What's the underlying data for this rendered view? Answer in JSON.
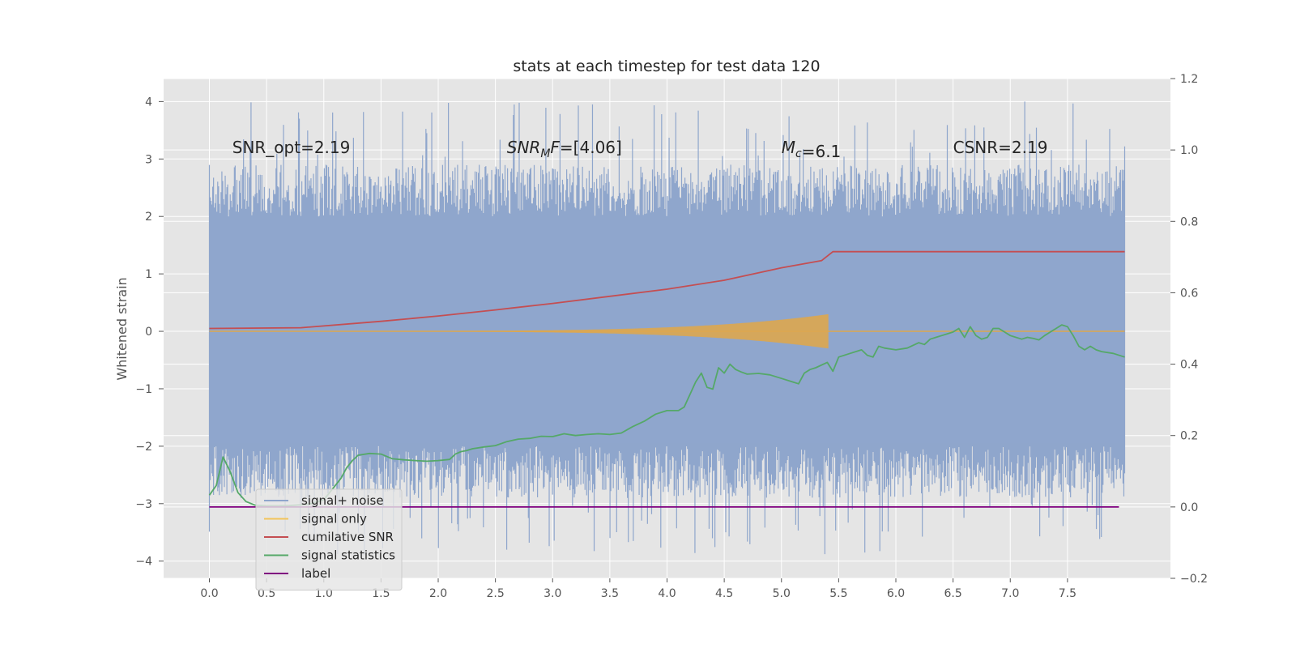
{
  "chart_data": {
    "type": "line",
    "title": "stats at each timestep for test data 120",
    "xlabel": "",
    "ylabel": "Whitened strain",
    "xlim": [
      -0.4,
      8.4
    ],
    "ylim": [
      -4.3,
      4.4
    ],
    "y2lim": [
      -0.2,
      1.2
    ],
    "grid": true,
    "x_ticks": [
      0.0,
      0.5,
      1.0,
      1.5,
      2.0,
      2.5,
      3.0,
      3.5,
      4.0,
      4.5,
      5.0,
      5.5,
      6.0,
      6.5,
      7.0,
      7.5
    ],
    "x_tick_labels": [
      "0.0",
      "0.5",
      "1.0",
      "1.5",
      "2.0",
      "2.5",
      "3.0",
      "3.5",
      "4.0",
      "4.5",
      "5.0",
      "5.5",
      "6.0",
      "6.5",
      "7.0",
      "7.5"
    ],
    "y_ticks": [
      -4,
      -3,
      -2,
      -1,
      0,
      1,
      2,
      3,
      4
    ],
    "y_tick_labels": [
      "−4",
      "−3",
      "−2",
      "−1",
      "0",
      "1",
      "2",
      "3",
      "4"
    ],
    "y2_ticks": [
      -0.2,
      0.0,
      0.2,
      0.4,
      0.6,
      0.8,
      1.0,
      1.2
    ],
    "y2_tick_labels": [
      "−0.2",
      "0.0",
      "0.2",
      "0.4",
      "0.6",
      "0.8",
      "1.0",
      "1.2"
    ],
    "annotations": [
      {
        "text": "SNR_opt=2.19",
        "x": 0.2,
        "y": 3.2
      },
      {
        "text": "SNR_MF=[4.06]",
        "x": 2.6,
        "y": 3.2
      },
      {
        "text": "M_c=6.1",
        "x": 5.0,
        "y": 3.2
      },
      {
        "text": "CSNR=2.19",
        "x": 6.5,
        "y": 3.2
      }
    ],
    "legend": {
      "position": "lower-left",
      "entries": [
        {
          "label": "signal+ noise",
          "color": "#8fa6cc"
        },
        {
          "label": "signal only",
          "color": "#f2c45a"
        },
        {
          "label": "cumilative SNR",
          "color": "#c44e52"
        },
        {
          "label": "signal statistics",
          "color": "#55a868"
        },
        {
          "label": "label",
          "color": "#800080"
        }
      ]
    },
    "series": [
      {
        "name": "signal+ noise",
        "axis": "left",
        "style": "noise-band",
        "color": "#8fa6cc",
        "x_range": [
          0.0,
          8.0
        ],
        "envelope": [
          -2.0,
          2.0
        ],
        "extreme_range": [
          -3.9,
          4.0
        ]
      },
      {
        "name": "signal only",
        "axis": "left",
        "style": "chirp",
        "color": "#dda74f",
        "x_range": [
          0.0,
          8.0
        ],
        "merger_time": 5.43,
        "peak_amplitude": 0.3
      },
      {
        "name": "cumilative SNR",
        "axis": "right",
        "color": "#c44e52",
        "x": [
          0.0,
          0.8,
          1.5,
          2.0,
          2.5,
          3.0,
          3.5,
          4.0,
          4.5,
          5.0,
          5.35,
          5.45,
          8.0
        ],
        "values": [
          0.5,
          0.502,
          0.52,
          0.535,
          0.552,
          0.57,
          0.59,
          0.61,
          0.635,
          0.67,
          0.69,
          0.715,
          0.715
        ]
      },
      {
        "name": "signal statistics",
        "axis": "right",
        "color": "#55a868",
        "x": [
          0.0,
          0.06,
          0.12,
          0.18,
          0.25,
          0.32,
          0.4,
          0.5,
          0.6,
          0.7,
          0.8,
          0.9,
          1.0,
          1.1,
          1.15,
          1.2,
          1.25,
          1.3,
          1.4,
          1.5,
          1.6,
          1.7,
          1.8,
          1.9,
          2.0,
          2.1,
          2.15,
          2.2,
          2.25,
          2.3,
          2.4,
          2.5,
          2.6,
          2.7,
          2.8,
          2.9,
          3.0,
          3.1,
          3.2,
          3.3,
          3.4,
          3.5,
          3.6,
          3.7,
          3.8,
          3.9,
          4.0,
          4.1,
          4.15,
          4.2,
          4.25,
          4.3,
          4.35,
          4.4,
          4.45,
          4.5,
          4.55,
          4.6,
          4.65,
          4.7,
          4.8,
          4.9,
          5.0,
          5.1,
          5.15,
          5.2,
          5.25,
          5.3,
          5.4,
          5.45,
          5.5,
          5.6,
          5.7,
          5.75,
          5.8,
          5.85,
          5.9,
          6.0,
          6.1,
          6.2,
          6.25,
          6.3,
          6.35,
          6.4,
          6.45,
          6.5,
          6.55,
          6.6,
          6.65,
          6.7,
          6.75,
          6.8,
          6.85,
          6.9,
          6.95,
          7.0,
          7.05,
          7.1,
          7.15,
          7.2,
          7.25,
          7.3,
          7.35,
          7.4,
          7.45,
          7.5,
          7.55,
          7.6,
          7.65,
          7.7,
          7.75,
          7.8,
          7.9,
          8.0
        ],
        "values": [
          0.033,
          0.06,
          0.14,
          0.1,
          0.04,
          0.015,
          0.005,
          0.003,
          0.003,
          0.004,
          0.006,
          0.01,
          0.02,
          0.06,
          0.08,
          0.11,
          0.13,
          0.145,
          0.15,
          0.148,
          0.135,
          0.132,
          0.13,
          0.128,
          0.13,
          0.133,
          0.148,
          0.155,
          0.158,
          0.163,
          0.168,
          0.172,
          0.183,
          0.19,
          0.192,
          0.198,
          0.197,
          0.205,
          0.2,
          0.203,
          0.205,
          0.203,
          0.207,
          0.225,
          0.24,
          0.26,
          0.27,
          0.27,
          0.28,
          0.315,
          0.35,
          0.375,
          0.335,
          0.33,
          0.39,
          0.375,
          0.4,
          0.385,
          0.378,
          0.372,
          0.374,
          0.37,
          0.36,
          0.35,
          0.345,
          0.375,
          0.385,
          0.39,
          0.405,
          0.38,
          0.42,
          0.43,
          0.44,
          0.425,
          0.42,
          0.45,
          0.445,
          0.44,
          0.445,
          0.46,
          0.455,
          0.47,
          0.475,
          0.48,
          0.485,
          0.49,
          0.5,
          0.475,
          0.505,
          0.48,
          0.47,
          0.475,
          0.5,
          0.5,
          0.49,
          0.48,
          0.475,
          0.47,
          0.475,
          0.472,
          0.468,
          0.48,
          0.49,
          0.5,
          0.51,
          0.505,
          0.48,
          0.45,
          0.44,
          0.45,
          0.44,
          0.435,
          0.43,
          0.42
        ]
      },
      {
        "name": "label",
        "axis": "right",
        "color": "#800080",
        "x": [
          0.0,
          7.95
        ],
        "values": [
          0.0,
          0.0
        ]
      }
    ]
  }
}
